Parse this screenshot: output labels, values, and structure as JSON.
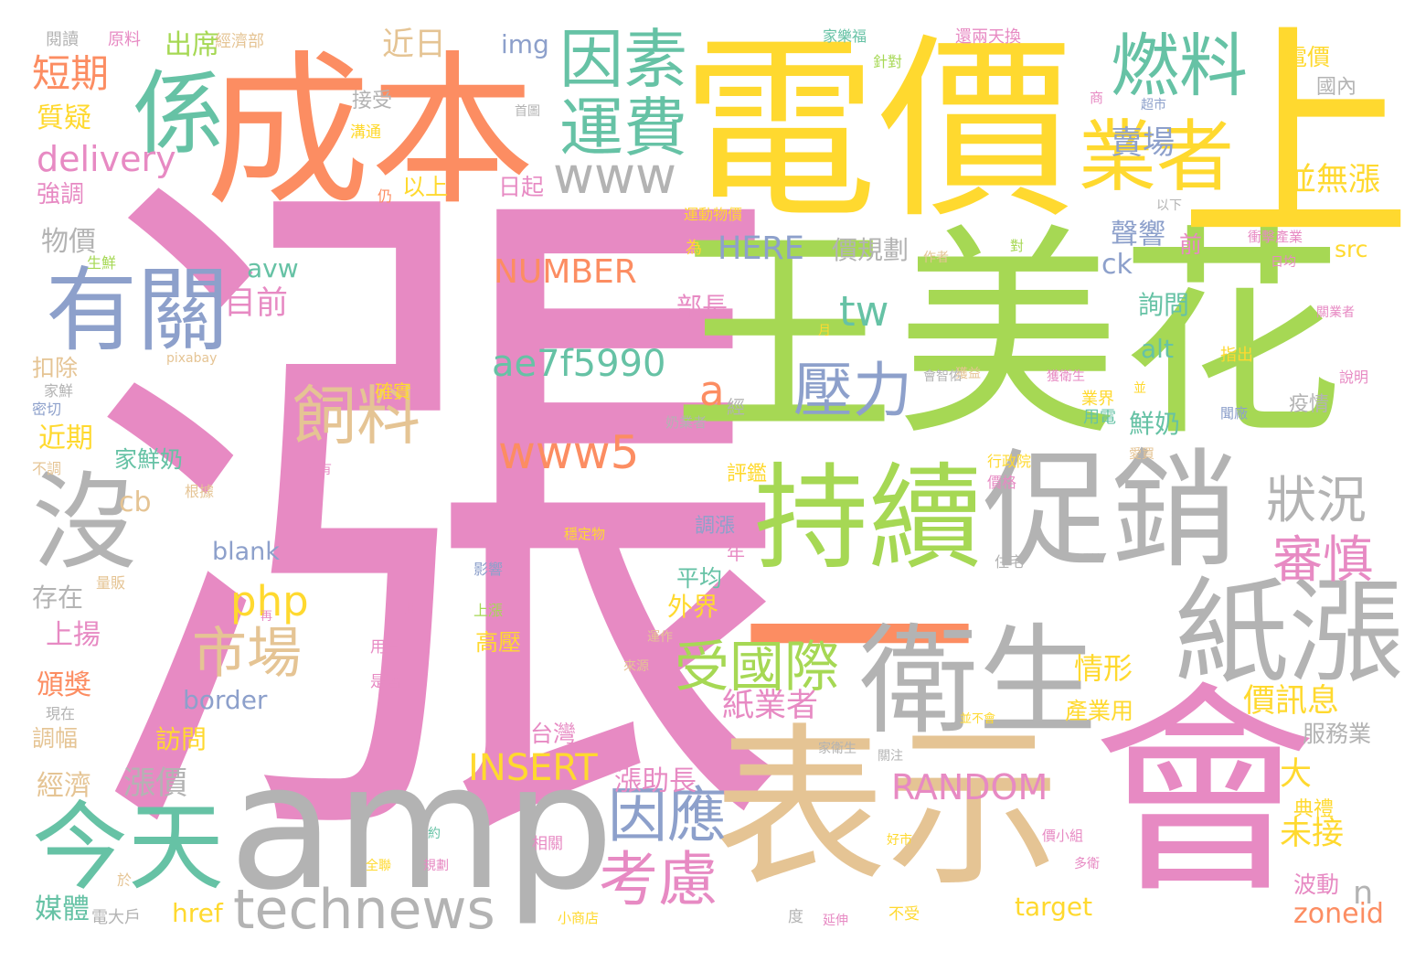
{
  "palette": {
    "pink": "#e78ac3",
    "orange": "#fc8d62",
    "yellow": "#ffd92f",
    "green": "#a6d854",
    "teal": "#66c2a5",
    "blue": "#8da0cb",
    "tan": "#e5c494",
    "gray": "#b3b3b3"
  },
  "words": [
    {
      "text": "漲",
      "color": "pink"
    },
    {
      "text": "電價",
      "color": "yellow"
    },
    {
      "text": "王美花",
      "color": "green"
    },
    {
      "text": "成本",
      "color": "orange"
    },
    {
      "text": "上",
      "color": "yellow"
    },
    {
      "text": "表示",
      "color": "tan"
    },
    {
      "text": "會",
      "color": "pink"
    },
    {
      "text": "amp",
      "color": "gray"
    },
    {
      "text": "一",
      "color": "orange"
    },
    {
      "text": "促銷",
      "color": "gray"
    },
    {
      "text": "持續",
      "color": "green"
    },
    {
      "text": "衛生",
      "color": "gray"
    },
    {
      "text": "紙漲",
      "color": "gray"
    },
    {
      "text": "沒",
      "color": "gray"
    },
    {
      "text": "今天",
      "color": "teal"
    },
    {
      "text": "有關",
      "color": "blue"
    },
    {
      "text": "係",
      "color": "teal"
    },
    {
      "text": "業者",
      "color": "yellow"
    },
    {
      "text": "technews",
      "color": "gray"
    },
    {
      "text": "燃料",
      "color": "teal"
    },
    {
      "text": "因素",
      "color": "teal"
    },
    {
      "text": "運費",
      "color": "teal"
    },
    {
      "text": "www",
      "color": "gray"
    },
    {
      "text": "壓力",
      "color": "blue"
    },
    {
      "text": "飼料",
      "color": "tan"
    },
    {
      "text": "www5",
      "color": "orange"
    },
    {
      "text": "受國際",
      "color": "green"
    },
    {
      "text": "市場",
      "color": "tan"
    },
    {
      "text": "因應",
      "color": "blue"
    },
    {
      "text": "考慮",
      "color": "pink"
    },
    {
      "text": "狀況",
      "color": "gray"
    },
    {
      "text": "審慎",
      "color": "pink"
    },
    {
      "text": "ae7f5990",
      "color": "teal"
    },
    {
      "text": "RANDOM",
      "color": "pink"
    },
    {
      "text": "INSERT",
      "color": "yellow"
    },
    {
      "text": "NUMBER",
      "color": "orange"
    },
    {
      "text": "delivery",
      "color": "pink"
    },
    {
      "text": "短期",
      "color": "orange"
    },
    {
      "text": "tw",
      "color": "teal"
    },
    {
      "text": "php",
      "color": "yellow"
    },
    {
      "text": "a",
      "color": "orange"
    },
    {
      "text": "HERE",
      "color": "blue"
    },
    {
      "text": "目前",
      "color": "pink"
    },
    {
      "text": "近日",
      "color": "tan"
    },
    {
      "text": "賣場",
      "color": "blue"
    },
    {
      "text": "並無漲",
      "color": "yellow"
    },
    {
      "text": "紙業者",
      "color": "pink"
    },
    {
      "text": "價訊息",
      "color": "yellow"
    },
    {
      "text": "情形",
      "color": "yellow"
    },
    {
      "text": "漲價",
      "color": "gray"
    },
    {
      "text": "未接",
      "color": "yellow"
    },
    {
      "text": "漲助長",
      "color": "pink"
    },
    {
      "text": "大",
      "color": "yellow"
    },
    {
      "text": "n",
      "color": "gray"
    },
    {
      "text": "cb",
      "color": "tan"
    },
    {
      "text": "質疑",
      "color": "yellow"
    },
    {
      "text": "物價",
      "color": "gray"
    },
    {
      "text": "強調",
      "color": "pink"
    },
    {
      "text": "聲響",
      "color": "blue"
    },
    {
      "text": "價規劃",
      "color": "gray"
    },
    {
      "text": "img",
      "color": "blue"
    },
    {
      "text": "出席",
      "color": "green"
    },
    {
      "text": "以上",
      "color": "yellow"
    },
    {
      "text": "日起",
      "color": "pink"
    },
    {
      "text": "接受",
      "color": "gray"
    },
    {
      "text": "avw",
      "color": "teal"
    },
    {
      "text": "部長",
      "color": "pink"
    },
    {
      "text": "ck",
      "color": "blue"
    },
    {
      "text": "前",
      "color": "pink"
    },
    {
      "text": "src",
      "color": "yellow"
    },
    {
      "text": "詢問",
      "color": "teal"
    },
    {
      "text": "alt",
      "color": "teal"
    },
    {
      "text": "鮮奶",
      "color": "teal"
    },
    {
      "text": "疫情",
      "color": "gray"
    },
    {
      "text": "家鮮奶",
      "color": "teal"
    },
    {
      "text": "近期",
      "color": "yellow"
    },
    {
      "text": "扣除",
      "color": "tan"
    },
    {
      "text": "評鑑",
      "color": "yellow"
    },
    {
      "text": "經",
      "color": "gray"
    },
    {
      "text": "blank",
      "color": "blue"
    },
    {
      "text": "存在",
      "color": "gray"
    },
    {
      "text": "調漲",
      "color": "blue"
    },
    {
      "text": "平均",
      "color": "teal"
    },
    {
      "text": "年",
      "color": "pink"
    },
    {
      "text": "外界",
      "color": "yellow"
    },
    {
      "text": "上揚",
      "color": "pink"
    },
    {
      "text": "高壓",
      "color": "yellow"
    },
    {
      "text": "頒獎",
      "color": "orange"
    },
    {
      "text": "border",
      "color": "blue"
    },
    {
      "text": "調幅",
      "color": "tan"
    },
    {
      "text": "訪問",
      "color": "yellow"
    },
    {
      "text": "台灣",
      "color": "pink"
    },
    {
      "text": "經濟",
      "color": "tan"
    },
    {
      "text": "媒體",
      "color": "teal"
    },
    {
      "text": "href",
      "color": "yellow"
    },
    {
      "text": "target",
      "color": "yellow"
    },
    {
      "text": "zoneid",
      "color": "orange"
    },
    {
      "text": "波動",
      "color": "pink"
    },
    {
      "text": "典禮",
      "color": "yellow"
    },
    {
      "text": "產業用",
      "color": "yellow"
    },
    {
      "text": "服務業",
      "color": "gray"
    },
    {
      "text": "電價",
      "color": "yellow"
    },
    {
      "text": "國內",
      "color": "gray"
    },
    {
      "text": "指出",
      "color": "yellow"
    },
    {
      "text": "用電",
      "color": "teal"
    },
    {
      "text": "確實",
      "color": "yellow"
    },
    {
      "text": "業界",
      "color": "yellow"
    },
    {
      "text": "閱讀",
      "color": "gray"
    },
    {
      "text": "原料",
      "color": "pink"
    },
    {
      "text": "經濟部",
      "color": "tan"
    },
    {
      "text": "家樂福",
      "color": "teal"
    },
    {
      "text": "還兩天換",
      "color": "pink"
    },
    {
      "text": "針對",
      "color": "green"
    },
    {
      "text": "溝通",
      "color": "yellow"
    },
    {
      "text": "首圖",
      "color": "gray"
    },
    {
      "text": "仍",
      "color": "orange"
    },
    {
      "text": "運動物價",
      "color": "yellow"
    },
    {
      "text": "為",
      "color": "yellow"
    },
    {
      "text": "生鮮",
      "color": "green"
    },
    {
      "text": "pixabay",
      "color": "tan"
    },
    {
      "text": "家鮮",
      "color": "gray"
    },
    {
      "text": "密切",
      "color": "blue"
    },
    {
      "text": "不調",
      "color": "tan"
    },
    {
      "text": "根據",
      "color": "tan"
    },
    {
      "text": "沒有",
      "color": "pink"
    },
    {
      "text": "穩定物",
      "color": "yellow"
    },
    {
      "text": "量販",
      "color": "tan"
    },
    {
      "text": "影響",
      "color": "blue"
    },
    {
      "text": "上漲",
      "color": "green"
    },
    {
      "text": "用戶",
      "color": "pink"
    },
    {
      "text": "是否",
      "color": "pink"
    },
    {
      "text": "現在",
      "color": "gray"
    },
    {
      "text": "全聯",
      "color": "yellow"
    },
    {
      "text": "規劃",
      "color": "pink"
    },
    {
      "text": "相關",
      "color": "pink"
    },
    {
      "text": "小商店",
      "color": "yellow"
    },
    {
      "text": "電大戶",
      "color": "gray"
    },
    {
      "text": "於",
      "color": "tan"
    },
    {
      "text": "度",
      "color": "gray"
    },
    {
      "text": "延伸",
      "color": "pink"
    },
    {
      "text": "不受",
      "color": "yellow"
    },
    {
      "text": "好市",
      "color": "yellow"
    },
    {
      "text": "多衛",
      "color": "pink"
    },
    {
      "text": "價小組",
      "color": "pink"
    },
    {
      "text": "住宅",
      "color": "gray"
    },
    {
      "text": "行政院",
      "color": "yellow"
    },
    {
      "text": "價格",
      "color": "pink"
    },
    {
      "text": "奶業者",
      "color": "gray"
    },
    {
      "text": "獲益",
      "color": "tan"
    },
    {
      "text": "會智佑",
      "color": "gray"
    },
    {
      "text": "獲衛生",
      "color": "pink"
    },
    {
      "text": "聞廠",
      "color": "blue"
    },
    {
      "text": "說明",
      "color": "pink"
    },
    {
      "text": "衝擊產業",
      "color": "pink"
    },
    {
      "text": "日均",
      "color": "pink"
    },
    {
      "text": "關業者",
      "color": "pink"
    },
    {
      "text": "以下",
      "color": "gray"
    },
    {
      "text": "超市",
      "color": "blue"
    },
    {
      "text": "商",
      "color": "pink"
    },
    {
      "text": "作者",
      "color": "tan"
    },
    {
      "text": "對",
      "color": "green"
    },
    {
      "text": "月",
      "color": "yellow"
    },
    {
      "text": "並",
      "color": "yellow"
    },
    {
      "text": "愛買",
      "color": "tan"
    },
    {
      "text": "運作",
      "color": "tan"
    },
    {
      "text": "來源",
      "color": "tan"
    },
    {
      "text": "並不會",
      "color": "yellow"
    },
    {
      "text": "家衛生",
      "color": "gray"
    },
    {
      "text": "關注",
      "color": "gray"
    },
    {
      "text": "再",
      "color": "pink"
    },
    {
      "text": "相",
      "color": "pink"
    },
    {
      "text": "約",
      "color": "teal"
    }
  ]
}
